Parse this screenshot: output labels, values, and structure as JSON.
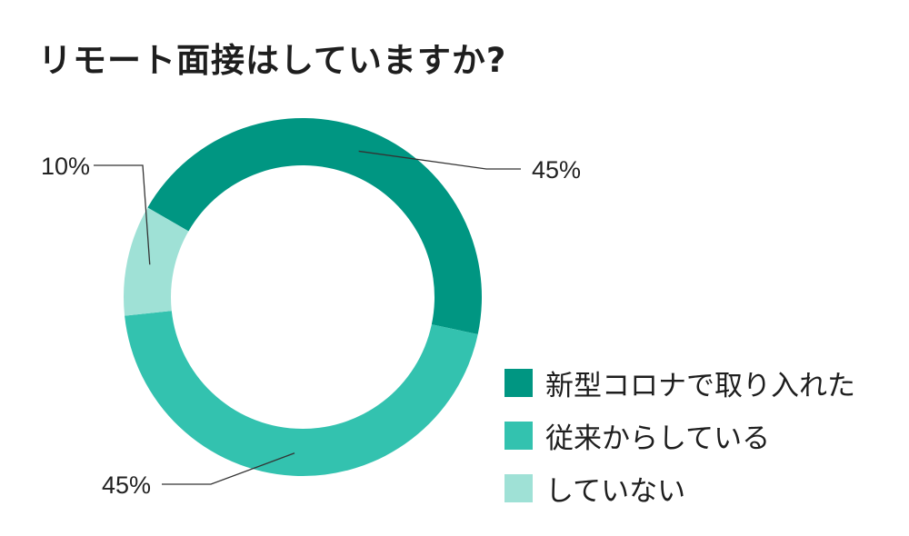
{
  "title": "リモート面接はしていますか?",
  "colors": {
    "series_0": "#009682",
    "series_1": "#33c2af",
    "series_2": "#9fe1d6"
  },
  "chart_data": {
    "type": "pie",
    "donut": true,
    "title": "リモート面接はしていますか?",
    "categories": [
      "新型コロナで取り入れた",
      "従来からしている",
      "していない"
    ],
    "values": [
      45,
      45,
      10
    ],
    "labels": [
      "45%",
      "45%",
      "10%"
    ],
    "unit": "%",
    "legend_position": "bottom-right"
  }
}
